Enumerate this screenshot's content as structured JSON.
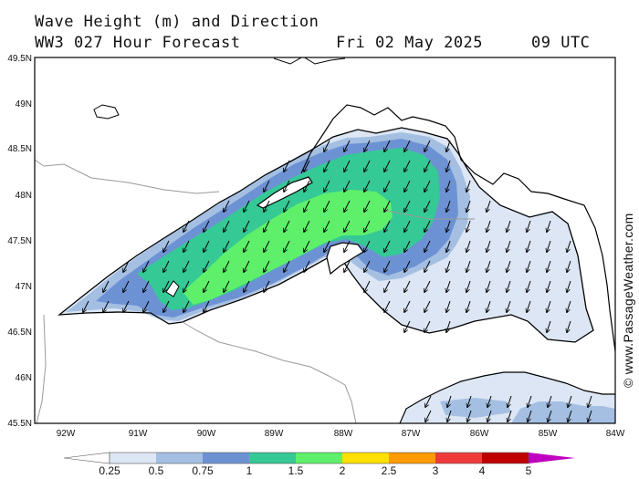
{
  "header": {
    "line1": "Wave Height (m) and Direction",
    "line2_left": "WW3 027 Hour Forecast",
    "line2_date": "Fri 02 May 2025",
    "line2_time": "09 UTC"
  },
  "credit": "© www.PassageWeather.com",
  "axes": {
    "lon_labels": [
      "92W",
      "91W",
      "90W",
      "89W",
      "88W",
      "87W",
      "86W",
      "85W",
      "84W"
    ],
    "lat_labels": [
      "49.5N",
      "49N",
      "48.5N",
      "48N",
      "47.5N",
      "47N",
      "46.5N",
      "46N",
      "45.5N"
    ]
  },
  "colorbar": {
    "labels": [
      "0.25",
      "0.5",
      "0.75",
      "1",
      "1.5",
      "2",
      "2.5",
      "3",
      "4",
      "5"
    ],
    "colors": [
      "#ffffff",
      "#dce6f4",
      "#a4bfe2",
      "#6d92d4",
      "#35c995",
      "#5ef06a",
      "#ffe000",
      "#ff9a00",
      "#ef3a3a",
      "#c00000",
      "#c000c0"
    ]
  },
  "colors": {
    "land": "#ffffff",
    "c025": "#dce6f4",
    "c05": "#a4bfe2",
    "c075": "#6d92d4",
    "c1": "#35c995",
    "c15": "#5ef06a",
    "coast": "#000000",
    "border": "#9a9a9a"
  }
}
